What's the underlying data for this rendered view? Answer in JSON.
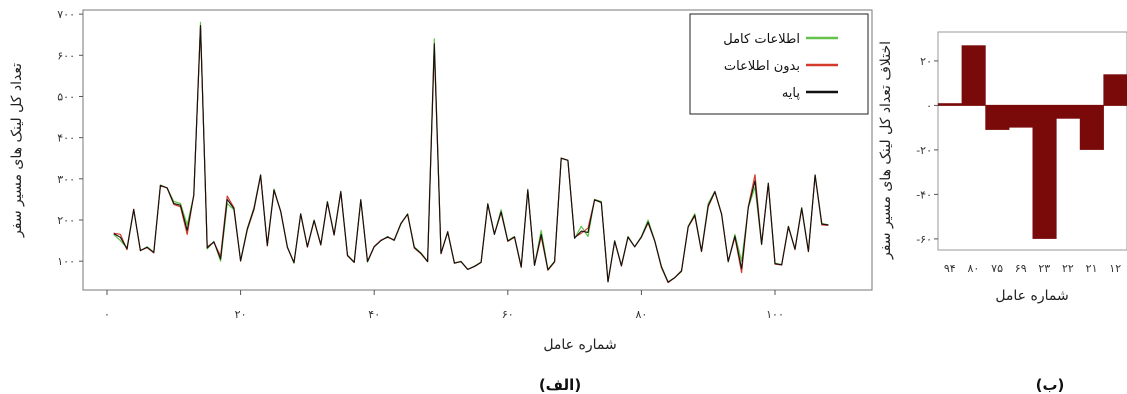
{
  "charts": [
    {
      "panel_label": "(الف)",
      "chart_data": {
        "type": "line",
        "xlabel": "شماره عامل",
        "ylabel": "تعداد کل لینک های مسیر سفر",
        "xlim": [
          0,
          109
        ],
        "ylim": [
          30,
          710
        ],
        "x_ticks": [
          {
            "value": 0,
            "label": "۰"
          },
          {
            "value": 20,
            "label": "۲۰"
          },
          {
            "value": 40,
            "label": "۴۰"
          },
          {
            "value": 60,
            "label": "۶۰"
          },
          {
            "value": 80,
            "label": "۸۰"
          },
          {
            "value": 100,
            "label": "۱۰۰"
          }
        ],
        "y_ticks": [
          {
            "value": 100,
            "label": "۱۰۰"
          },
          {
            "value": 200,
            "label": "۲۰۰"
          },
          {
            "value": 300,
            "label": "۳۰۰"
          },
          {
            "value": 400,
            "label": "۴۰۰"
          },
          {
            "value": 500,
            "label": "۵۰۰"
          },
          {
            "value": 600,
            "label": "۶۰۰"
          },
          {
            "value": 700,
            "label": "۷۰۰"
          }
        ],
        "legend_position": "top-right",
        "x_start": 1,
        "series": [
          {
            "name": "اطلاعات کامل",
            "color": "#66c24a",
            "values": [
              165,
              150,
              132,
              225,
              125,
              135,
              122,
              285,
              278,
              245,
              240,
              188,
              260,
              680,
              130,
              148,
              100,
              240,
              225,
              102,
              180,
              230,
              310,
              140,
              275,
              220,
              135,
              95,
              215,
              135,
              200,
              140,
              245,
              165,
              270,
              115,
              98,
              250,
              98,
              135,
              150,
              160,
              150,
              190,
              215,
              135,
              120,
              100,
              640,
              120,
              170,
              95,
              100,
              80,
              88,
              98,
              240,
              165,
              225,
              150,
              160,
              88,
              275,
              90,
              175,
              80,
              100,
              350,
              345,
              155,
              185,
              160,
              250,
              245,
              50,
              150,
              90,
              160,
              135,
              160,
              200,
              150,
              88,
              50,
              60,
              75,
              185,
              215,
              125,
              240,
              270,
              215,
              98,
              165,
              100,
              230,
              280,
              140,
              290,
              95,
              92,
              185,
              130,
              230,
              125,
              310,
              192,
              188
            ]
          },
          {
            "name": "بدون اطلاعات",
            "color": "#d43a2a",
            "values": [
              168,
              165,
              128,
              226,
              126,
              133,
              120,
              283,
              278,
              238,
              232,
              165,
              262,
              670,
              135,
              146,
              112,
              258,
              230,
              100,
              176,
              225,
              308,
              137,
              272,
              222,
              133,
              97,
              214,
              134,
              198,
              139,
              243,
              163,
              268,
              113,
              97,
              248,
              100,
              136,
              151,
              158,
              152,
              192,
              214,
              132,
              118,
              99,
              620,
              118,
              172,
              96,
              99,
              80,
              87,
              97,
              238,
              166,
              218,
              148,
              158,
              85,
              272,
              90,
              160,
              78,
              98,
              350,
              345,
              158,
              168,
              180,
              249,
              242,
              50,
              148,
              88,
              158,
              135,
              158,
              193,
              148,
              85,
              48,
              60,
              77,
              183,
              210,
              123,
              232,
              268,
              214,
              100,
              158,
              72,
              232,
              310,
              142,
              288,
              93,
              91,
              184,
              128,
              228,
              123,
              308,
              188,
              187
            ]
          },
          {
            "name": "پایه",
            "color": "#111111",
            "values": [
              167,
              158,
              130,
              226,
              126,
              134,
              121,
              284,
              278,
              240,
              236,
              175,
              260,
              672,
              132,
              147,
              105,
              250,
              228,
              101,
              178,
              228,
              309,
              138,
              273,
              221,
              134,
              96,
              215,
              135,
              199,
              140,
              244,
              164,
              269,
              114,
              97,
              249,
              99,
              135,
              150,
              159,
              151,
              191,
              214,
              133,
              119,
              99,
              628,
              119,
              171,
              95,
              99,
              80,
              87,
              97,
              239,
              165,
              220,
              149,
              159,
              86,
              273,
              90,
              165,
              79,
              99,
              350,
              345,
              156,
              173,
              170,
              249,
              243,
              50,
              149,
              89,
              159,
              135,
              159,
              195,
              149,
              86,
              49,
              60,
              76,
              184,
              212,
              124,
              235,
              269,
              214,
              99,
              161,
              82,
              231,
              295,
              141,
              289,
              94,
              91,
              184,
              129,
              229,
              124,
              309,
              190,
              188
            ]
          }
        ]
      }
    },
    {
      "panel_label": "(ب)",
      "chart_data": {
        "type": "bar",
        "xlabel": "شماره عامل",
        "ylabel": "اختلاف تعداد کل لینک های مسیر سفر",
        "categories": [
          "۱۲",
          "۲۱",
          "۲۲",
          "۲۳",
          "۶۹",
          "۷۵",
          "۸۰",
          "۹۴"
        ],
        "values": [
          1,
          27,
          -11,
          -10,
          -60,
          -6,
          -20,
          14
        ],
        "ylim": [
          -65,
          33
        ],
        "bar_color": "#7a0a0a",
        "y_ticks": [
          {
            "value": 20,
            "label": "۲۰"
          },
          {
            "value": 0,
            "label": "۰"
          },
          {
            "value": -20,
            "label": "-۲۰"
          },
          {
            "value": -40,
            "label": "-۴۰"
          },
          {
            "value": -60,
            "label": "-۶۰"
          }
        ]
      }
    }
  ]
}
